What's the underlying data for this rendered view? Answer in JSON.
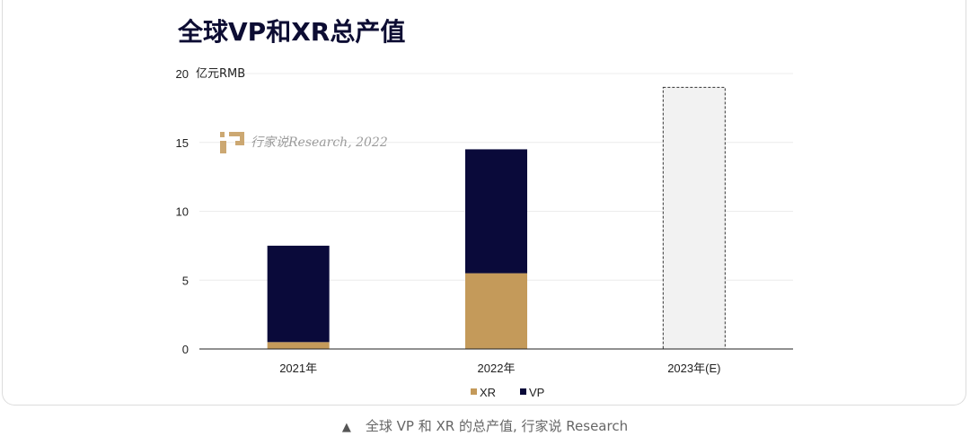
{
  "chart_data": {
    "type": "bar",
    "stacked": true,
    "title": "全球VP和XR总产值",
    "ylabel": "亿元RMB",
    "ylim": [
      0,
      20
    ],
    "yticks": [
      0,
      5,
      10,
      15,
      20
    ],
    "categories": [
      "2021年",
      "2022年",
      "2023年(E)"
    ],
    "series": [
      {
        "name": "XR",
        "color": "#c49a5a",
        "values": [
          0.5,
          5.5,
          null
        ]
      },
      {
        "name": "VP",
        "color": "#0a0a3a",
        "values": [
          7.0,
          9.0,
          null
        ]
      }
    ],
    "estimate": {
      "category": "2023年(E)",
      "total": 19,
      "fill": "#f2f2f2",
      "stroke": "#333333",
      "style": "dashed"
    },
    "legend": "bottom-center",
    "grid": true
  },
  "watermark": {
    "text": "行家说Research, 2022"
  },
  "caption": {
    "marker": "▲",
    "text": "全球 VP 和 XR 的总产值, 行家说 Research"
  }
}
